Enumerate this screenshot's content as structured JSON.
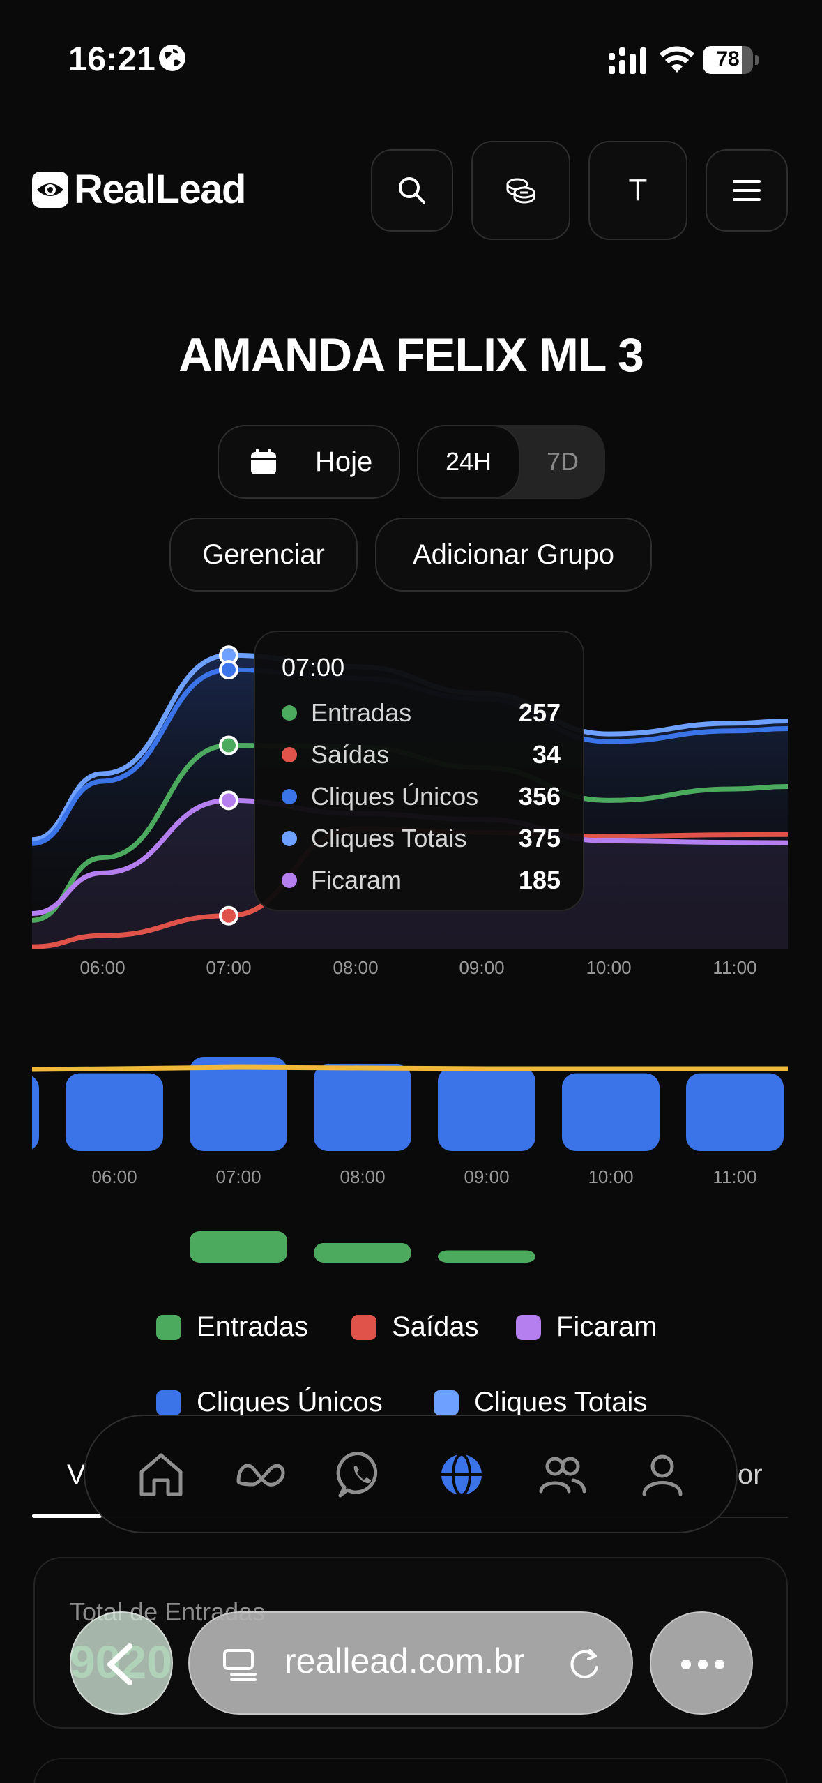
{
  "status_bar": {
    "time": "16:21",
    "battery": "78",
    "battery_level": 0.78
  },
  "header": {
    "brand": "RealLead",
    "search_icon": "search-icon",
    "coins_icon": "coins-icon",
    "profile_initial": "T",
    "menu_icon": "hamburger-icon"
  },
  "page": {
    "title": "AMANDA FELIX ML 3"
  },
  "controls": {
    "date_label": "Hoje",
    "range_24h": "24H",
    "range_7d": "7D",
    "range_selected": "24H",
    "manage_label": "Gerenciar",
    "add_group_label": "Adicionar Grupo"
  },
  "colors": {
    "entradas": "#4caa5e",
    "saidas": "#e0534a",
    "cliques_unicos": "#3b74e8",
    "cliques_totais": "#6ea0ff",
    "ficaram": "#b57ff0",
    "bar_line": "#f0b93a"
  },
  "chart_data": [
    {
      "type": "line",
      "x": [
        "06:00",
        "07:00",
        "08:00",
        "09:00",
        "10:00",
        "11:00"
      ],
      "series": [
        {
          "name": "Entradas",
          "values": [
            110,
            257,
            255,
            228,
            185,
            200
          ]
        },
        {
          "name": "Saídas",
          "values": [
            8,
            34,
            148,
            143,
            138,
            140
          ]
        },
        {
          "name": "Cliques Únicos",
          "values": [
            210,
            356,
            345,
            318,
            262,
            276
          ]
        },
        {
          "name": "Cliques Totais",
          "values": [
            220,
            375,
            360,
            325,
            272,
            286
          ]
        },
        {
          "name": "Ficaram",
          "values": [
            90,
            185,
            168,
            160,
            132,
            130
          ]
        }
      ],
      "tooltip": {
        "time": "07:00",
        "rows": [
          {
            "label": "Entradas",
            "value": "257"
          },
          {
            "label": "Saídas",
            "value": "34"
          },
          {
            "label": "Cliques Únicos",
            "value": "356"
          },
          {
            "label": "Cliques Totais",
            "value": "375"
          },
          {
            "label": "Ficaram",
            "value": "185"
          }
        ]
      }
    },
    {
      "type": "bar",
      "categories": [
        "06:00",
        "07:00",
        "08:00",
        "09:00",
        "10:00",
        "11:00"
      ],
      "series": [
        {
          "name": "Cliques Únicos",
          "values": [
            300,
            356,
            330,
            320,
            300,
            300
          ]
        },
        {
          "name": "Entradas",
          "values": [
            0,
            257,
            160,
            100,
            0,
            0
          ]
        }
      ]
    }
  ],
  "legend": [
    {
      "label": "Entradas",
      "color": "#4caa5e"
    },
    {
      "label": "Saídas",
      "color": "#e0534a"
    },
    {
      "label": "Ficaram",
      "color": "#b57ff0"
    },
    {
      "label": "Cliques Únicos",
      "color": "#3b74e8"
    },
    {
      "label": "Cliques Totais",
      "color": "#6ea0ff"
    }
  ],
  "tabs": {
    "left_partial": "V",
    "right_partial": "or"
  },
  "bottom_nav": [
    "home-icon",
    "meta-icon",
    "whatsapp-icon",
    "globe-icon",
    "users-icon",
    "profile-icon"
  ],
  "card": {
    "label": "Total de Entradas",
    "value": "9020"
  },
  "browser": {
    "url": "reallead.com.br"
  }
}
